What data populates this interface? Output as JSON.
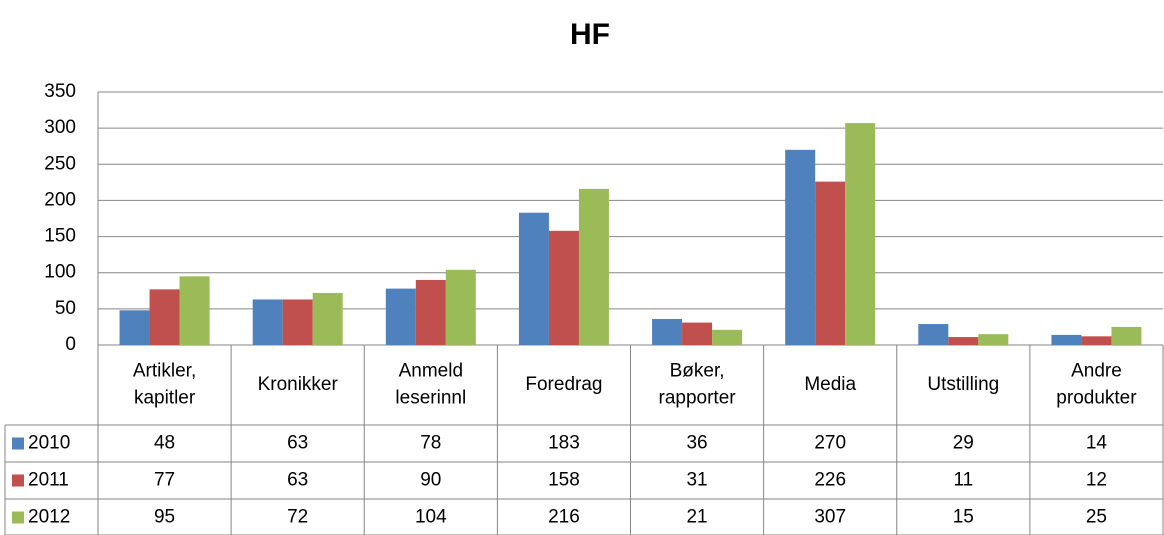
{
  "chart_data": {
    "type": "bar",
    "title": "HF",
    "categories": [
      "Artikler,\nkapitler",
      "Kronikker",
      "Anmeld\nleserinnl",
      "Foredrag",
      "Bøker,\nrapporter",
      "Media",
      "Utstilling",
      "Andre\nprodukter"
    ],
    "series": [
      {
        "name": "2010",
        "color": "#4f81bd",
        "values": [
          48,
          63,
          78,
          183,
          36,
          270,
          29,
          14
        ]
      },
      {
        "name": "2011",
        "color": "#c0504d",
        "values": [
          77,
          63,
          90,
          158,
          31,
          226,
          11,
          12
        ]
      },
      {
        "name": "2012",
        "color": "#9bbb59",
        "values": [
          95,
          72,
          104,
          216,
          21,
          307,
          15,
          25
        ]
      }
    ],
    "ylim": [
      0,
      350
    ],
    "yticks": [
      0,
      50,
      100,
      150,
      200,
      250,
      300,
      350
    ],
    "grid": true
  }
}
